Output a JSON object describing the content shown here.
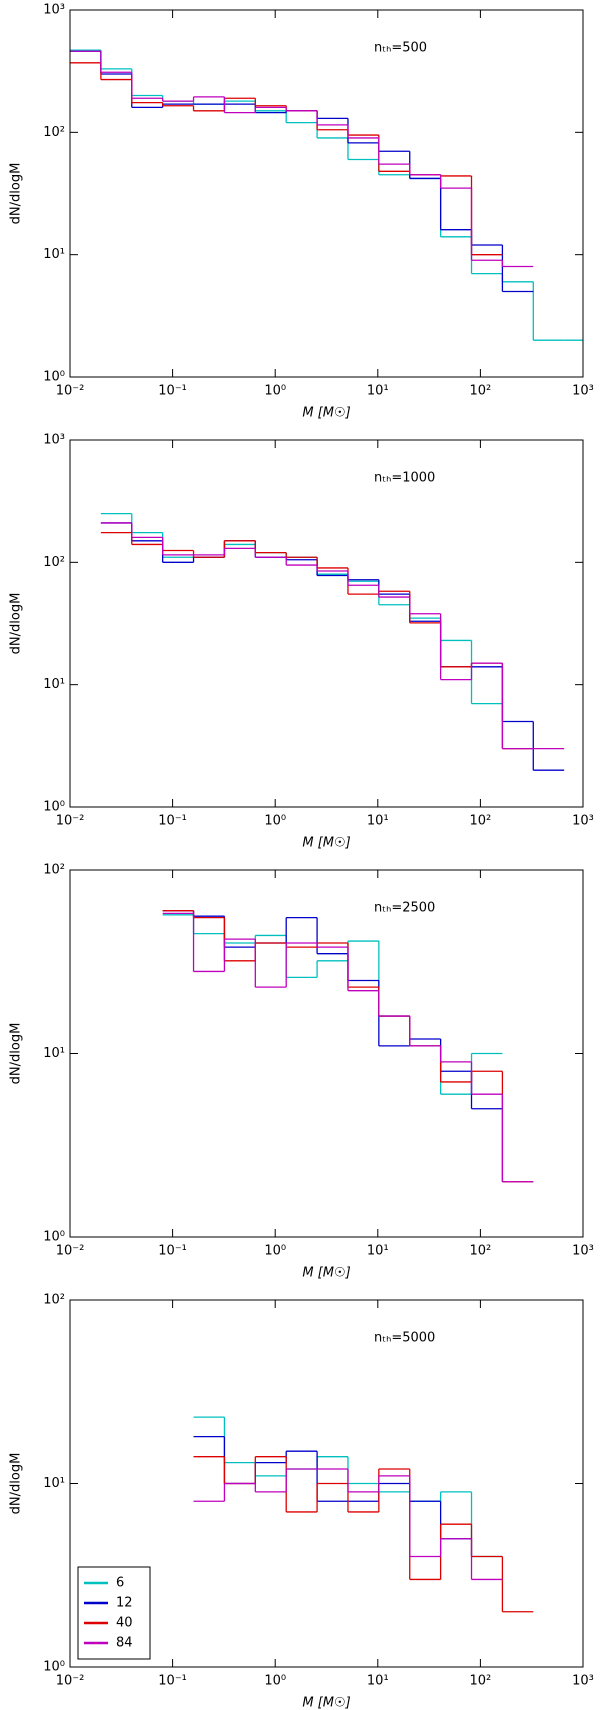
{
  "chart_data": [
    {
      "type": "histogram",
      "annotation": "nₜₕ=500",
      "ylabel": "dN/dlogM",
      "xlabel": "M [M☉]",
      "log_x": true,
      "log_y": true,
      "bins": [
        0.01,
        0.02,
        0.04,
        0.08,
        0.16,
        0.32,
        0.64,
        1.28,
        2.56,
        5.12,
        10.24,
        20.48,
        40.96,
        81.92,
        163.84,
        327.68,
        655.36,
        1310.72
      ],
      "xlim": [
        0.01,
        1000
      ],
      "xticks": [
        {
          "value": 0.01,
          "label": "10⁻²"
        },
        {
          "value": 0.1,
          "label": "10⁻¹"
        },
        {
          "value": 1,
          "label": "10⁰"
        },
        {
          "value": 10,
          "label": "10¹"
        },
        {
          "value": 100,
          "label": "10²"
        },
        {
          "value": 1000,
          "label": "10³"
        }
      ],
      "ylim": [
        1,
        1000
      ],
      "yticks": [
        {
          "value": 1,
          "label": "10⁰"
        },
        {
          "value": 10,
          "label": "10¹"
        },
        {
          "value": 100,
          "label": "10²"
        },
        {
          "value": 1000,
          "label": "10³"
        }
      ],
      "series": [
        {
          "color": "#00bfbf",
          "values": [
            470,
            330,
            200,
            180,
            170,
            180,
            150,
            120,
            90,
            60,
            45,
            42,
            14,
            7,
            6,
            2,
            2
          ]
        },
        {
          "color": "#0000cc",
          "values": [
            460,
            300,
            160,
            170,
            170,
            170,
            145,
            150,
            130,
            82,
            70,
            42,
            16,
            12,
            5,
            null,
            null
          ]
        },
        {
          "color": "#dd0000",
          "values": [
            370,
            270,
            175,
            165,
            150,
            190,
            165,
            150,
            105,
            95,
            48,
            45,
            44,
            10,
            null,
            null,
            null
          ]
        },
        {
          "color": "#bf00bf",
          "values": [
            460,
            310,
            190,
            180,
            195,
            145,
            160,
            150,
            115,
            90,
            55,
            45,
            35,
            9,
            8,
            null,
            null
          ]
        }
      ]
    },
    {
      "type": "histogram",
      "annotation": "nₜₕ=1000",
      "ylabel": "dN/dlogM",
      "xlabel": "M [M☉]",
      "log_x": true,
      "log_y": true,
      "bins": [
        0.01,
        0.02,
        0.04,
        0.08,
        0.16,
        0.32,
        0.64,
        1.28,
        2.56,
        5.12,
        10.24,
        20.48,
        40.96,
        81.92,
        163.84,
        327.68,
        655.36,
        1310.72
      ],
      "xlim": [
        0.01,
        1000
      ],
      "xticks": [
        {
          "value": 0.01,
          "label": "10⁻²"
        },
        {
          "value": 0.1,
          "label": "10⁻¹"
        },
        {
          "value": 1,
          "label": "10⁰"
        },
        {
          "value": 10,
          "label": "10¹"
        },
        {
          "value": 100,
          "label": "10²"
        },
        {
          "value": 1000,
          "label": "10³"
        }
      ],
      "ylim": [
        1,
        1000
      ],
      "yticks": [
        {
          "value": 1,
          "label": "10⁰"
        },
        {
          "value": 10,
          "label": "10¹"
        },
        {
          "value": 100,
          "label": "10²"
        },
        {
          "value": 1000,
          "label": "10³"
        }
      ],
      "series": [
        {
          "color": "#00bfbf",
          "values": [
            null,
            250,
            175,
            110,
            110,
            140,
            120,
            110,
            80,
            70,
            45,
            35,
            23,
            7,
            null,
            null,
            null
          ]
        },
        {
          "color": "#0000cc",
          "values": [
            null,
            210,
            150,
            100,
            110,
            150,
            110,
            105,
            78,
            72,
            55,
            33,
            14,
            14,
            5,
            2,
            null
          ]
        },
        {
          "color": "#dd0000",
          "values": [
            null,
            175,
            140,
            125,
            110,
            150,
            120,
            110,
            90,
            55,
            58,
            32,
            14,
            15,
            3,
            null,
            null
          ]
        },
        {
          "color": "#bf00bf",
          "values": [
            null,
            210,
            160,
            115,
            115,
            130,
            110,
            95,
            85,
            65,
            52,
            38,
            11,
            15,
            3,
            3,
            null
          ]
        }
      ]
    },
    {
      "type": "histogram",
      "annotation": "nₜₕ=2500",
      "ylabel": "dN/dlogM",
      "xlabel": "M [M☉]",
      "log_x": true,
      "log_y": true,
      "bins": [
        0.01,
        0.02,
        0.04,
        0.08,
        0.16,
        0.32,
        0.64,
        1.28,
        2.56,
        5.12,
        10.24,
        20.48,
        40.96,
        81.92,
        163.84,
        327.68,
        655.36,
        1310.72
      ],
      "xlim": [
        0.01,
        1000
      ],
      "xticks": [
        {
          "value": 0.01,
          "label": "10⁻²"
        },
        {
          "value": 0.1,
          "label": "10⁻¹"
        },
        {
          "value": 1,
          "label": "10⁰"
        },
        {
          "value": 10,
          "label": "10¹"
        },
        {
          "value": 100,
          "label": "10²"
        },
        {
          "value": 1000,
          "label": "10³"
        }
      ],
      "ylim": [
        1,
        100
      ],
      "yticks": [
        {
          "value": 1,
          "label": "10⁰"
        },
        {
          "value": 10,
          "label": "10¹"
        },
        {
          "value": 100,
          "label": "10²"
        }
      ],
      "series": [
        {
          "color": "#00bfbf",
          "values": [
            null,
            null,
            null,
            57,
            45,
            40,
            44,
            26,
            32,
            41,
            16,
            11,
            6,
            10,
            null,
            null,
            null
          ]
        },
        {
          "color": "#0000cc",
          "values": [
            null,
            null,
            null,
            60,
            56,
            38,
            40,
            55,
            35,
            25,
            11,
            12,
            8,
            5,
            null,
            null,
            null
          ]
        },
        {
          "color": "#dd0000",
          "values": [
            null,
            null,
            null,
            60,
            55,
            32,
            40,
            38,
            40,
            23,
            16,
            11,
            7,
            8,
            2,
            null,
            null
          ]
        },
        {
          "color": "#bf00bf",
          "values": [
            null,
            null,
            null,
            58,
            28,
            42,
            23,
            40,
            38,
            22,
            16,
            11,
            9,
            6,
            2,
            null,
            null
          ]
        }
      ]
    },
    {
      "type": "histogram",
      "annotation": "nₜₕ=5000",
      "ylabel": "dN/dlogM",
      "xlabel": "M [M☉]",
      "log_x": true,
      "log_y": true,
      "legend": "lower left",
      "bins": [
        0.01,
        0.02,
        0.04,
        0.08,
        0.16,
        0.32,
        0.64,
        1.28,
        2.56,
        5.12,
        10.24,
        20.48,
        40.96,
        81.92,
        163.84,
        327.68,
        655.36,
        1310.72
      ],
      "xlim": [
        0.01,
        1000
      ],
      "xticks": [
        {
          "value": 0.01,
          "label": "10⁻²"
        },
        {
          "value": 0.1,
          "label": "10⁻¹"
        },
        {
          "value": 1,
          "label": "10⁰"
        },
        {
          "value": 10,
          "label": "10¹"
        },
        {
          "value": 100,
          "label": "10²"
        },
        {
          "value": 1000,
          "label": "10³"
        }
      ],
      "ylim": [
        1,
        100
      ],
      "yticks": [
        {
          "value": 1,
          "label": "10⁰"
        },
        {
          "value": 10,
          "label": "10¹"
        },
        {
          "value": 100,
          "label": "10²"
        }
      ],
      "series": [
        {
          "name": "6",
          "color": "#00bfbf",
          "values": [
            null,
            null,
            null,
            null,
            23,
            13,
            11,
            12,
            14,
            10,
            9,
            8,
            9,
            4,
            null,
            null,
            null
          ]
        },
        {
          "name": "12",
          "color": "#0000cc",
          "values": [
            null,
            null,
            null,
            null,
            18,
            10,
            13,
            15,
            8,
            8,
            10,
            8,
            5,
            null,
            null,
            null,
            null
          ]
        },
        {
          "name": "40",
          "color": "#dd0000",
          "values": [
            null,
            null,
            null,
            null,
            14,
            10,
            14,
            7,
            10,
            7,
            12,
            3,
            6,
            4,
            2,
            null,
            null
          ]
        },
        {
          "name": "84",
          "color": "#bf00bf",
          "values": [
            null,
            null,
            null,
            null,
            8,
            10,
            9,
            12,
            12,
            9,
            11,
            4,
            5,
            3,
            null,
            null,
            null
          ]
        }
      ]
    }
  ]
}
